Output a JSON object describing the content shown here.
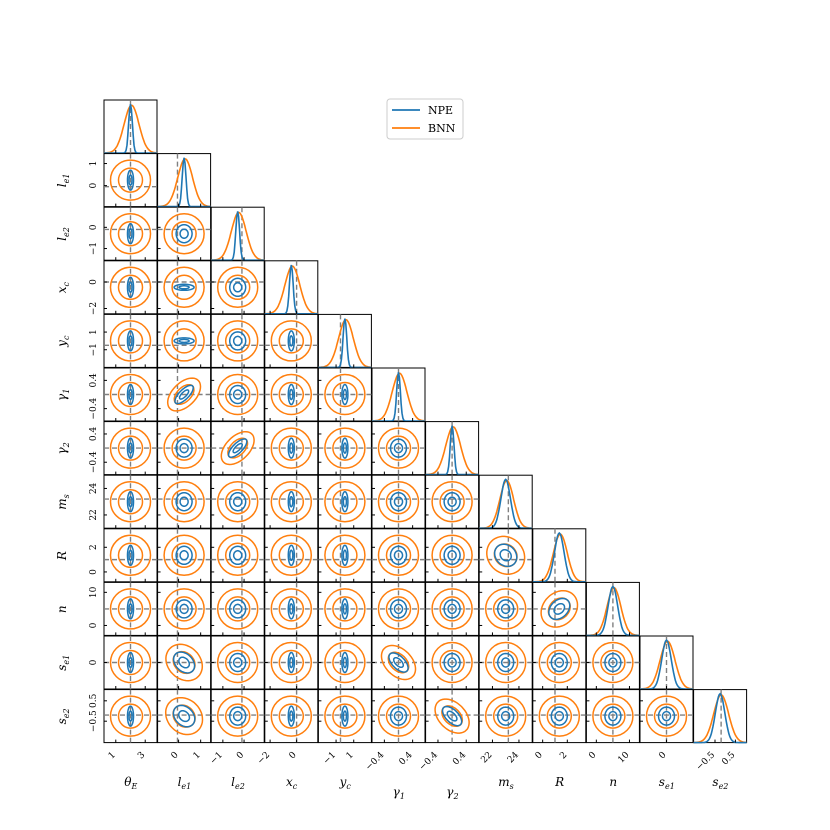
{
  "chart_data": {
    "type": "corner",
    "parameters": [
      {
        "label": "θ",
        "sub": "E",
        "ticks": [
          {
            "v": 1,
            "t": "1"
          },
          {
            "v": 3,
            "t": "3"
          }
        ],
        "range": [
          0.2,
          3.8
        ],
        "truth": 2.0
      },
      {
        "label": "l",
        "sub": "e1",
        "ticks": [
          {
            "v": 0,
            "t": "0"
          },
          {
            "v": 1,
            "t": "1"
          }
        ],
        "range": [
          -0.95,
          1.45
        ],
        "truth": -0.05
      },
      {
        "label": "l",
        "sub": "e2",
        "ticks": [
          {
            "v": -1,
            "t": "−1"
          },
          {
            "v": 0,
            "t": "0"
          }
        ],
        "range": [
          -1.55,
          0.95
        ],
        "truth": -0.1
      },
      {
        "label": "x",
        "sub": "c",
        "ticks": [
          {
            "v": -2,
            "t": "−2"
          },
          {
            "v": 0,
            "t": "0"
          }
        ],
        "range": [
          -2.4,
          1.6
        ],
        "truth": 0.0
      },
      {
        "label": "y",
        "sub": "c",
        "ticks": [
          {
            "v": -1,
            "t": "−1"
          },
          {
            "v": 1,
            "t": "1"
          }
        ],
        "range": [
          -3.0,
          3.0
        ],
        "truth": -0.5
      },
      {
        "label": "γ",
        "sub": "1",
        "ticks": [
          {
            "v": -0.4,
            "t": "−0.4"
          },
          {
            "v": 0.4,
            "t": "0.4"
          }
        ],
        "range": [
          -0.75,
          0.75
        ],
        "truth": 0.0
      },
      {
        "label": "γ",
        "sub": "2",
        "ticks": [
          {
            "v": -0.4,
            "t": "−0.4"
          },
          {
            "v": 0.4,
            "t": "0.4"
          }
        ],
        "range": [
          -0.75,
          0.75
        ],
        "truth": 0.0
      },
      {
        "label": "m",
        "sub": "s",
        "ticks": [
          {
            "v": 22,
            "t": "22"
          },
          {
            "v": 24,
            "t": "24"
          }
        ],
        "range": [
          21.0,
          25.0
        ],
        "truth": 23.2
      },
      {
        "label": "R",
        "sub": "",
        "ticks": [
          {
            "v": 0,
            "t": "0"
          },
          {
            "v": 2,
            "t": "2"
          }
        ],
        "range": [
          -0.8,
          3.5
        ],
        "truth": 1.0
      },
      {
        "label": "n",
        "sub": "",
        "ticks": [
          {
            "v": 0,
            "t": "0"
          },
          {
            "v": 10,
            "t": "10"
          }
        ],
        "range": [
          -3.0,
          13.0
        ],
        "truth": 5.0
      },
      {
        "label": "s",
        "sub": "e1",
        "ticks": [
          {
            "v": 0,
            "t": "0"
          }
        ],
        "range": [
          -0.85,
          0.85
        ],
        "truth": 0.0
      },
      {
        "label": "s",
        "sub": "e2",
        "ticks": [
          {
            "v": -0.5,
            "t": "−0.5"
          },
          {
            "v": 0.5,
            "t": "0.5"
          }
        ],
        "range": [
          -1.55,
          1.05
        ],
        "truth": -0.2
      }
    ],
    "series": [
      {
        "name": "NPE",
        "color": "#1f77b4"
      },
      {
        "name": "BNN",
        "color": "#ff7f0e"
      }
    ],
    "truth_color": "#808080",
    "legend_position": "top-center",
    "grid": false
  }
}
